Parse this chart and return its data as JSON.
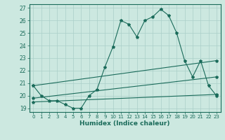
{
  "xlabel": "Humidex (Indice chaleur)",
  "bg_color": "#cce8e0",
  "line_color": "#1a6b5a",
  "grid_color": "#aacfc8",
  "xlim": [
    -0.5,
    23.5
  ],
  "ylim": [
    18.7,
    27.3
  ],
  "yticks": [
    19,
    20,
    21,
    22,
    23,
    24,
    25,
    26,
    27
  ],
  "xticks": [
    0,
    1,
    2,
    3,
    4,
    5,
    6,
    7,
    8,
    9,
    10,
    11,
    12,
    13,
    14,
    15,
    16,
    17,
    18,
    19,
    20,
    21,
    22,
    23
  ],
  "lines": [
    {
      "x": [
        0,
        1,
        2,
        3,
        4,
        5,
        6,
        7,
        8,
        9,
        10,
        11,
        12,
        13,
        14,
        15,
        16,
        17,
        18,
        19,
        20,
        21,
        22,
        23
      ],
      "y": [
        20.8,
        20.0,
        19.6,
        19.6,
        19.3,
        19.0,
        19.0,
        20.0,
        20.5,
        22.3,
        23.9,
        26.0,
        25.7,
        24.7,
        26.0,
        26.3,
        26.9,
        26.4,
        25.0,
        22.8,
        21.5,
        22.8,
        20.8,
        20.0
      ]
    },
    {
      "x": [
        0,
        23
      ],
      "y": [
        20.8,
        22.8
      ]
    },
    {
      "x": [
        0,
        23
      ],
      "y": [
        19.8,
        21.5
      ]
    },
    {
      "x": [
        0,
        23
      ],
      "y": [
        19.5,
        20.1
      ]
    }
  ]
}
